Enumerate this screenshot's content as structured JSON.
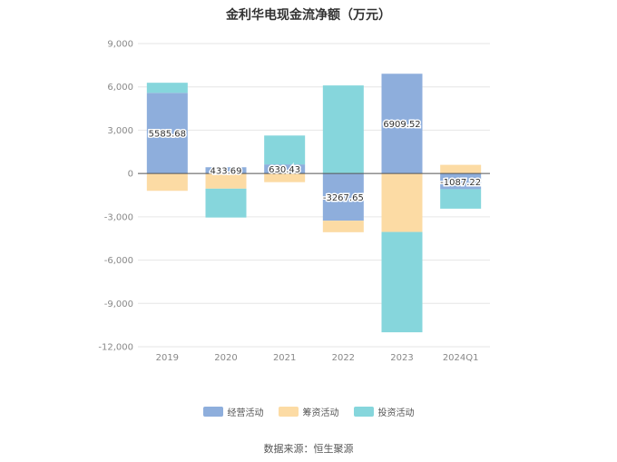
{
  "chart_data": {
    "type": "bar",
    "stacked": true,
    "title": "金利华电现金流净额（万元）",
    "categories": [
      "2019",
      "2020",
      "2021",
      "2022",
      "2023",
      "2024Q1"
    ],
    "ylim": [
      -12000,
      9000
    ],
    "yticks": [
      9000,
      6000,
      3000,
      0,
      -3000,
      -6000,
      -9000,
      -12000
    ],
    "ytick_labels": [
      "9,000",
      "6,000",
      "3,000",
      "0",
      "-3,000",
      "-6,000",
      "-9,000",
      "-12,000"
    ],
    "grid": true,
    "legend_position": "bottom",
    "series": [
      {
        "name": "经营活动",
        "color": "#8eaedc",
        "values": [
          5585.68,
          433.69,
          630.43,
          -3267.65,
          6909.52,
          -1087.22
        ]
      },
      {
        "name": "筹资活动",
        "color": "#fcdba4",
        "values": [
          -1200,
          -1050,
          -600,
          -800,
          -4050,
          600
        ]
      },
      {
        "name": "投资活动",
        "color": "#86d6dc",
        "values": [
          700,
          -2000,
          2000,
          6100,
          -6950,
          -1350
        ]
      }
    ],
    "data_labels": [
      "5585.68",
      "433.69",
      "630.43",
      "-3267.65",
      "6909.52",
      "-1087.22"
    ]
  },
  "source_note": "数据来源：恒生聚源"
}
